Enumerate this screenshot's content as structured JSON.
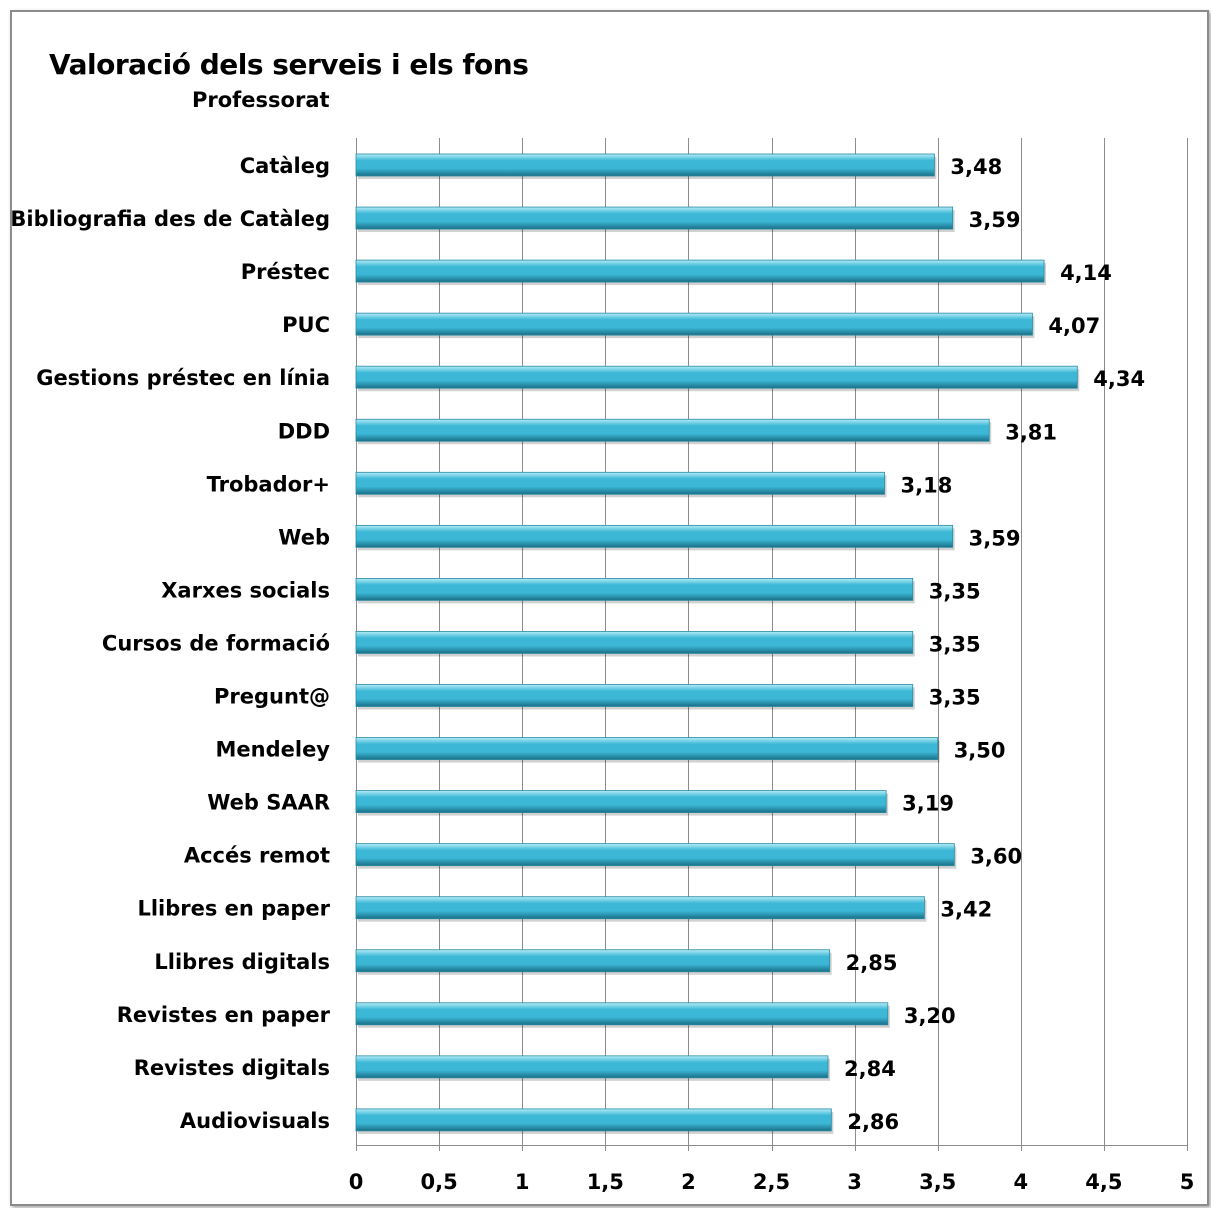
{
  "chart_data": {
    "type": "bar",
    "orientation": "horizontal",
    "title": "Valoració dels serveis i els fons",
    "subtitle": "Professorat",
    "categories": [
      "Catàleg",
      "Bibliografia des de Catàleg",
      "Préstec",
      "PUC",
      "Gestions préstec en línia",
      "DDD",
      "Trobador+",
      "Web",
      "Xarxes socials",
      "Cursos de formació",
      "Pregunt@",
      "Mendeley",
      "Web SAAR",
      "Accés remot",
      "Llibres en paper",
      "Llibres digitals",
      "Revistes en paper",
      "Revistes digitals",
      "Audiovisuals"
    ],
    "values": [
      3.48,
      3.59,
      4.14,
      4.07,
      4.34,
      3.81,
      3.18,
      3.59,
      3.35,
      3.35,
      3.35,
      3.5,
      3.19,
      3.6,
      3.42,
      2.85,
      3.2,
      2.84,
      2.86
    ],
    "data_labels": [
      "3,48",
      "3,59",
      "4,14",
      "4,07",
      "4,34",
      "3,81",
      "3,18",
      "3,59",
      "3,35",
      "3,35",
      "3,35",
      "3,50",
      "3,19",
      "3,60",
      "3,42",
      "2,85",
      "3,20",
      "2,84",
      "2,86"
    ],
    "xlim": [
      0,
      5
    ],
    "x_ticks": [
      0,
      0.5,
      1,
      1.5,
      2,
      2.5,
      3,
      3.5,
      4,
      4.5,
      5
    ],
    "x_tick_labels": [
      "0",
      "0,5",
      "1",
      "1,5",
      "2",
      "2,5",
      "3",
      "3,5",
      "4",
      "4,5",
      "5"
    ],
    "grid": "vertical",
    "bar_color": "#3cb8d6",
    "bar_highlight_color": "#b4ecf7",
    "bar_shadow_color": "#1a6f86",
    "gridline_color": "#8c8c8c"
  }
}
